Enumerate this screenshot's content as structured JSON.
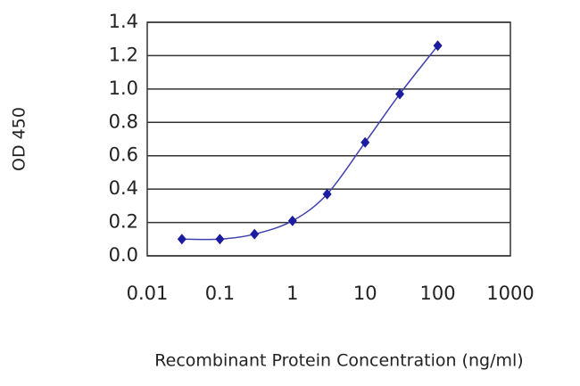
{
  "chart_data": {
    "type": "line",
    "x_label": "Recombinant Protein Concentration (ng/ml)",
    "y_label": "OD 450",
    "x": [
      0.03,
      0.1,
      0.3,
      1,
      3,
      10,
      30,
      100
    ],
    "values": [
      0.1,
      0.1,
      0.13,
      0.21,
      0.37,
      0.68,
      0.97,
      1.26
    ],
    "color": "#1c1c9e",
    "x_log": true,
    "xlim": [
      0.01,
      1000
    ],
    "xticks": [
      0.01,
      0.1,
      1,
      10,
      100,
      1000
    ],
    "ylim": [
      0,
      1.4
    ],
    "yticks": [
      {
        "value": 0,
        "label": "0.0"
      },
      {
        "value": 0.2,
        "label": "0.2"
      },
      {
        "value": 0.4,
        "label": "0.4"
      },
      {
        "value": 0.6,
        "label": "0.6"
      },
      {
        "value": 0.8,
        "label": "0.8"
      },
      {
        "value": 1.0,
        "label": "1.0"
      },
      {
        "value": 1.2,
        "label": "1.2"
      },
      {
        "value": 1.4,
        "label": "1.4"
      }
    ],
    "grid": true
  }
}
